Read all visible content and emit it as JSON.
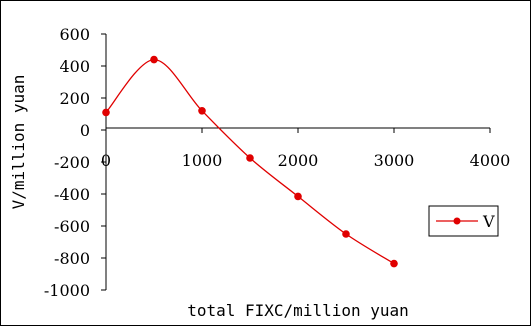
{
  "chart_data": {
    "type": "line",
    "xlabel": "total FIXC/million yuan",
    "ylabel": "V/million yuan",
    "xlim": [
      0,
      4000
    ],
    "ylim": [
      -1000,
      600
    ],
    "x_ticks": [
      0,
      1000,
      2000,
      3000,
      4000
    ],
    "y_ticks": [
      600,
      400,
      200,
      0,
      -200,
      -400,
      -600,
      -800,
      -1000
    ],
    "x_tick_labels": [
      "0",
      "1000",
      "2000",
      "3000",
      "4000"
    ],
    "y_tick_labels": [
      "600",
      "400",
      "200",
      "0",
      "-200",
      "-400",
      "-600",
      "-800",
      "-1000"
    ],
    "grid": false,
    "legend_position": "right",
    "series": [
      {
        "name": "V",
        "color": "#e00000",
        "x": [
          0,
          500,
          1000,
          1500,
          2000,
          2500,
          3000
        ],
        "y": [
          110,
          440,
          120,
          -175,
          -415,
          -650,
          -835
        ]
      }
    ]
  }
}
